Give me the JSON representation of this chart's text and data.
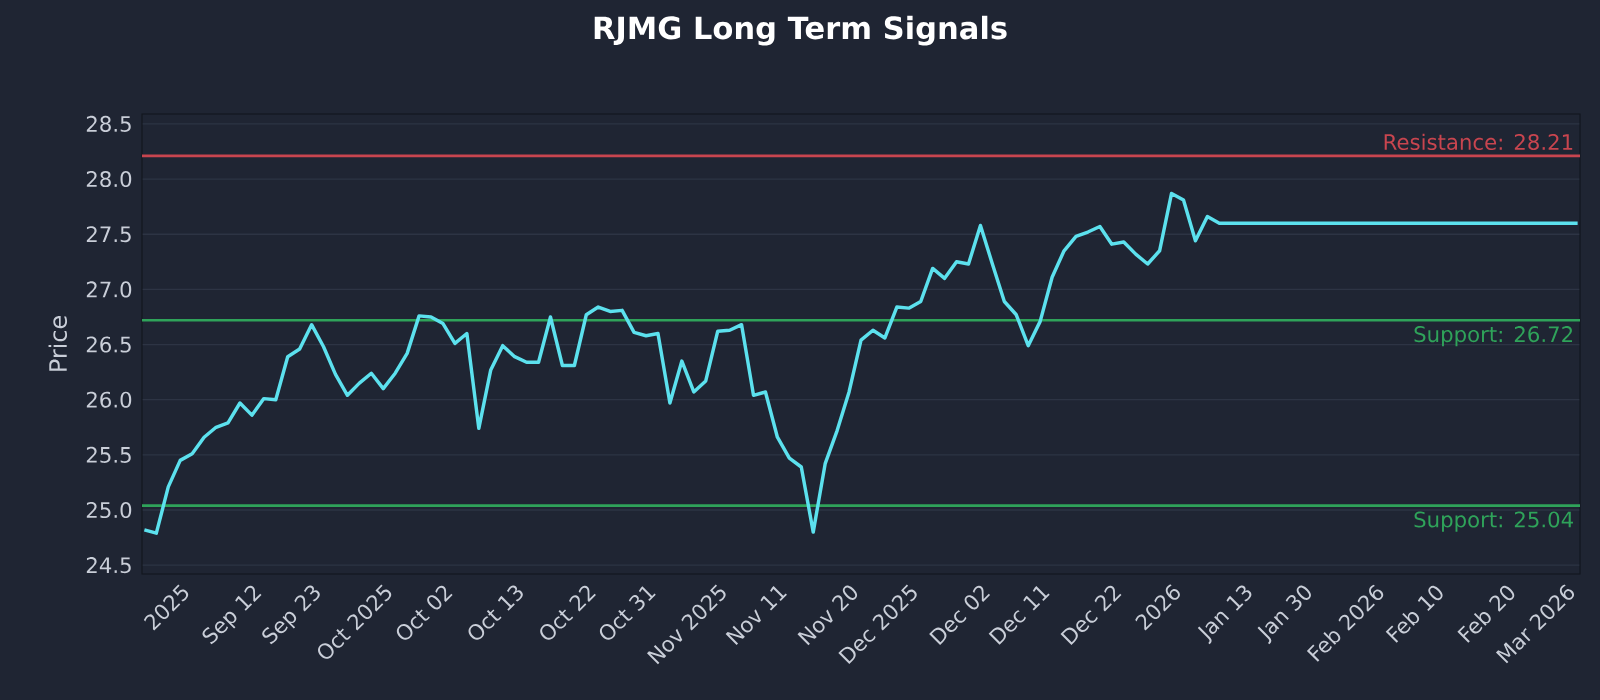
{
  "chart_data": {
    "type": "line",
    "title": "RJMG Long Term Signals",
    "ylabel": "Price",
    "categories": [
      null,
      null,
      null,
      "2025",
      null,
      null,
      null,
      null,
      null,
      "Sep 12",
      null,
      null,
      null,
      null,
      "Sep 23",
      null,
      null,
      null,
      null,
      null,
      "Oct 2025",
      null,
      null,
      null,
      null,
      "Oct 02",
      null,
      null,
      null,
      null,
      null,
      "Oct 13",
      null,
      null,
      null,
      null,
      null,
      "Oct 22",
      null,
      null,
      null,
      null,
      "Oct 31",
      null,
      null,
      null,
      null,
      null,
      "Nov 2025",
      null,
      null,
      null,
      null,
      "Nov 11",
      null,
      null,
      null,
      null,
      null,
      "Nov 20",
      null,
      null,
      null,
      null,
      "Dec 2025",
      null,
      null,
      null,
      null,
      null,
      "Dec 02",
      null,
      null,
      null,
      null,
      "Dec 11",
      null,
      null,
      null,
      null,
      null,
      "Dec 22",
      null,
      null,
      null,
      null,
      "2026",
      null,
      null,
      null,
      null,
      null,
      "Jan 13",
      null,
      null,
      null,
      null,
      "Jan 30",
      null,
      null,
      null,
      null,
      null,
      "Feb 2026",
      null,
      null,
      null,
      null,
      "Feb 10",
      null,
      null,
      null,
      null,
      null,
      "Feb 20",
      null,
      null,
      null,
      null,
      "Mar 2026",
      null
    ],
    "values": [
      24.82,
      24.79,
      25.21,
      25.45,
      25.51,
      25.66,
      25.75,
      25.79,
      25.97,
      25.86,
      26.01,
      26.0,
      26.39,
      26.46,
      26.68,
      26.48,
      26.23,
      26.04,
      26.15,
      26.24,
      26.1,
      26.24,
      26.42,
      26.76,
      26.75,
      26.69,
      26.51,
      26.6,
      25.74,
      26.27,
      26.49,
      26.39,
      26.34,
      26.34,
      26.75,
      26.31,
      26.31,
      26.77,
      26.84,
      26.8,
      26.81,
      26.61,
      26.58,
      26.6,
      25.97,
      26.35,
      26.07,
      26.17,
      26.62,
      26.63,
      26.68,
      26.04,
      26.07,
      25.66,
      25.47,
      25.39,
      24.8,
      25.42,
      25.72,
      26.07,
      26.54,
      26.63,
      26.56,
      26.84,
      26.83,
      26.89,
      27.19,
      27.1,
      27.25,
      27.23,
      27.58,
      27.23,
      26.89,
      26.77,
      26.49,
      26.71,
      27.11,
      27.35,
      27.48,
      27.52,
      27.57,
      27.41,
      27.43,
      27.32,
      27.23,
      27.35,
      27.87,
      27.81,
      27.44,
      27.66,
      27.6,
      27.6,
      27.6,
      27.6,
      27.6,
      27.6,
      27.6,
      27.6,
      27.6,
      27.6,
      27.6,
      27.6,
      27.6,
      27.6,
      27.6,
      27.6,
      27.6,
      27.6,
      27.6,
      27.6,
      27.6,
      27.6,
      27.6,
      27.6,
      27.6,
      27.6,
      27.6,
      27.6,
      27.6,
      27.6,
      27.6
    ],
    "color": "#5ce1ee",
    "marker": "none",
    "line_style": "solid",
    "grid": "y",
    "ylim": [
      24.42,
      28.59
    ],
    "yticks": [
      24.5,
      {
        "value": 25,
        "label": "25.0"
      },
      25.5,
      {
        "value": 26,
        "label": "26.0"
      },
      26.5,
      {
        "value": 27,
        "label": "27.0"
      },
      27.5,
      {
        "value": 28,
        "label": "28.0"
      },
      28.5
    ],
    "ref_lines": [
      {
        "axis": "y",
        "value": 28.21,
        "label": "Resistance: 28.21",
        "color": "#c8454f"
      },
      {
        "axis": "y",
        "value": 26.72,
        "label": "Support: 26.72",
        "color": "#2fa35a"
      },
      {
        "axis": "y",
        "value": 25.04,
        "label": "Support: 25.04",
        "color": "#2fa35a"
      }
    ]
  }
}
